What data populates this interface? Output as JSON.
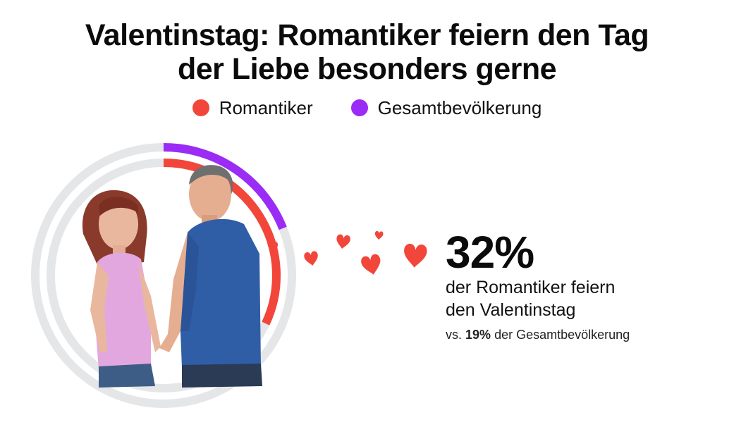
{
  "title_line1": "Valentinstag: Romantiker feiern den Tag",
  "title_line2": "der Liebe besonders gerne",
  "colors": {
    "romantiker": "#f2463a",
    "gesamt": "#9b2cf6",
    "track": "#e4e6e8",
    "heart": "#f2463a"
  },
  "icons": {
    "center_image": "couple-photo",
    "decoration": "heart-icon"
  },
  "chart_data": {
    "type": "radial-bar",
    "unit": "%",
    "max": 100,
    "series": [
      {
        "name": "Romantiker",
        "value": 32
      },
      {
        "name": "Gesamtbevölkerung",
        "value": 19
      }
    ],
    "legend_position": "top-center"
  },
  "stat": {
    "value": "32%",
    "caption_line1": "der Romantiker feiern",
    "caption_line2": "den Valentinstag",
    "compare_prefix": "vs.",
    "compare_value": "19%",
    "compare_suffix": "der Gesamtbevölkerung"
  }
}
